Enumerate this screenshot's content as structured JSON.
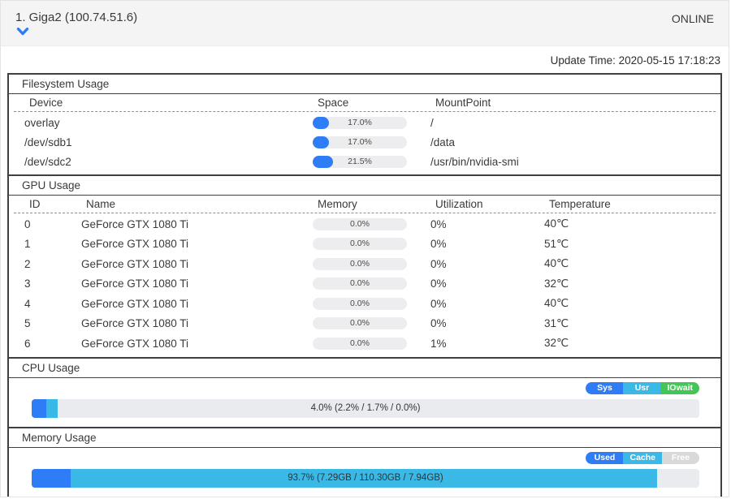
{
  "colors": {
    "accent_blue": "#2e7cf6",
    "light_blue": "#3bb9e6",
    "green": "#43c557",
    "free_gray": "#d9d9d9"
  },
  "header": {
    "title": "1. Giga2 (100.74.51.6)",
    "status": "ONLINE"
  },
  "update_time": "Update Time: 2020-05-15 17:18:23",
  "filesystem": {
    "title": "Filesystem Usage",
    "columns": [
      "Device",
      "Space",
      "MountPoint"
    ],
    "rows": [
      {
        "device": "overlay",
        "space_pct": 17.0,
        "space_label": "17.0%",
        "mount": "/"
      },
      {
        "device": "/dev/sdb1",
        "space_pct": 17.0,
        "space_label": "17.0%",
        "mount": "/data"
      },
      {
        "device": "/dev/sdc2",
        "space_pct": 21.5,
        "space_label": "21.5%",
        "mount": "/usr/bin/nvidia-smi"
      }
    ]
  },
  "gpu": {
    "title": "GPU Usage",
    "columns": [
      "ID",
      "Name",
      "Memory",
      "Utilization",
      "Temperature"
    ],
    "rows": [
      {
        "id": "0",
        "name": "GeForce GTX 1080 Ti",
        "memory_pct": 0.0,
        "memory_label": "0.0%",
        "utilization": "0%",
        "temperature": "40℃"
      },
      {
        "id": "1",
        "name": "GeForce GTX 1080 Ti",
        "memory_pct": 0.0,
        "memory_label": "0.0%",
        "utilization": "0%",
        "temperature": "51℃"
      },
      {
        "id": "2",
        "name": "GeForce GTX 1080 Ti",
        "memory_pct": 0.0,
        "memory_label": "0.0%",
        "utilization": "0%",
        "temperature": "40℃"
      },
      {
        "id": "3",
        "name": "GeForce GTX 1080 Ti",
        "memory_pct": 0.0,
        "memory_label": "0.0%",
        "utilization": "0%",
        "temperature": "32℃"
      },
      {
        "id": "4",
        "name": "GeForce GTX 1080 Ti",
        "memory_pct": 0.0,
        "memory_label": "0.0%",
        "utilization": "0%",
        "temperature": "40℃"
      },
      {
        "id": "5",
        "name": "GeForce GTX 1080 Ti",
        "memory_pct": 0.0,
        "memory_label": "0.0%",
        "utilization": "0%",
        "temperature": "31℃"
      },
      {
        "id": "6",
        "name": "GeForce GTX 1080 Ti",
        "memory_pct": 0.0,
        "memory_label": "0.0%",
        "utilization": "1%",
        "temperature": "32℃"
      }
    ]
  },
  "cpu": {
    "title": "CPU Usage",
    "legend": [
      {
        "name": "sys",
        "label": "Sys",
        "color": "#2e7cf6",
        "text_color": "#ffffff"
      },
      {
        "name": "usr",
        "label": "Usr",
        "color": "#3bb9e6",
        "text_color": "#ffffff"
      },
      {
        "name": "iowait",
        "label": "IOwait",
        "color": "#43c557",
        "text_color": "#ffffff"
      }
    ],
    "bar": {
      "label": "4.0% (2.2% / 1.7% / 0.0%)",
      "segments": [
        {
          "name": "sys",
          "pct": 2.2,
          "color": "#2e7cf6"
        },
        {
          "name": "usr",
          "pct": 1.7,
          "color": "#3bb9e6"
        }
      ]
    }
  },
  "memory": {
    "title": "Memory Usage",
    "legend": [
      {
        "name": "used",
        "label": "Used",
        "color": "#2e7cf6",
        "text_color": "#ffffff"
      },
      {
        "name": "cache",
        "label": "Cache",
        "color": "#3bb9e6",
        "text_color": "#ffffff"
      },
      {
        "name": "free",
        "label": "Free",
        "color": "#d9d9d9",
        "text_color": "#ffffff"
      }
    ],
    "bar": {
      "label": "93.7% (7.29GB / 110.30GB / 7.94GB)",
      "segments": [
        {
          "name": "used",
          "pct": 5.8,
          "color": "#2e7cf6"
        },
        {
          "name": "cache",
          "pct": 87.9,
          "color": "#3bb9e6"
        }
      ]
    }
  }
}
